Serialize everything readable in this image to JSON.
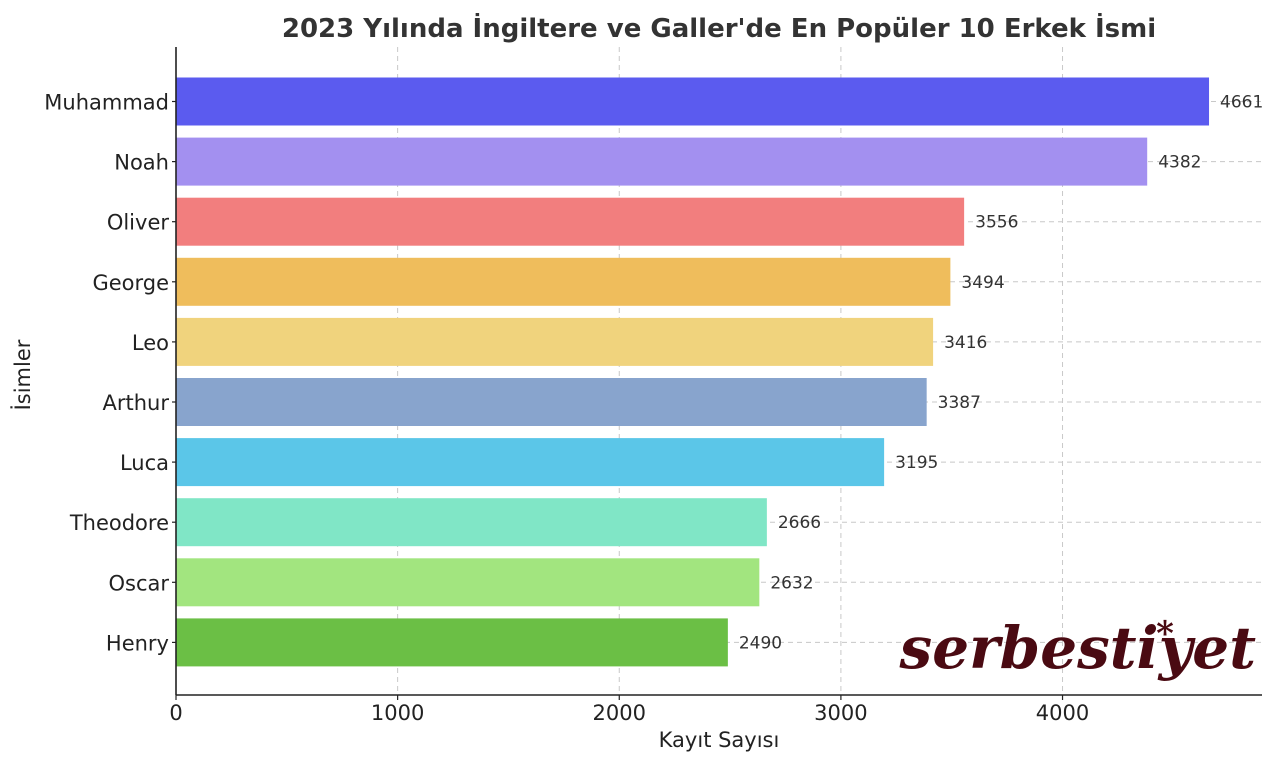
{
  "chart_data": {
    "type": "bar",
    "orientation": "horizontal",
    "title": "2023 Yılında İngiltere ve Galler'de En Popüler 10 Erkek İsmi",
    "xlabel": "Kayıt Sayısı",
    "ylabel": "İsimler",
    "xlim": [
      0,
      4900
    ],
    "xticks": [
      0,
      1000,
      2000,
      3000,
      4000
    ],
    "grid": true,
    "categories": [
      "Muhammad",
      "Noah",
      "Oliver",
      "George",
      "Leo",
      "Arthur",
      "Luca",
      "Theodore",
      "Oscar",
      "Henry"
    ],
    "values": [
      4661,
      4382,
      3556,
      3494,
      3416,
      3387,
      3195,
      2666,
      2632,
      2490
    ],
    "colors": [
      "#5b5bef",
      "#a390f0",
      "#f27e7e",
      "#efbd5c",
      "#f0d37d",
      "#88a4cd",
      "#5bc6e8",
      "#80e6c6",
      "#a2e57f",
      "#6bbf45"
    ]
  },
  "watermark": {
    "text": "serbestiyet"
  }
}
